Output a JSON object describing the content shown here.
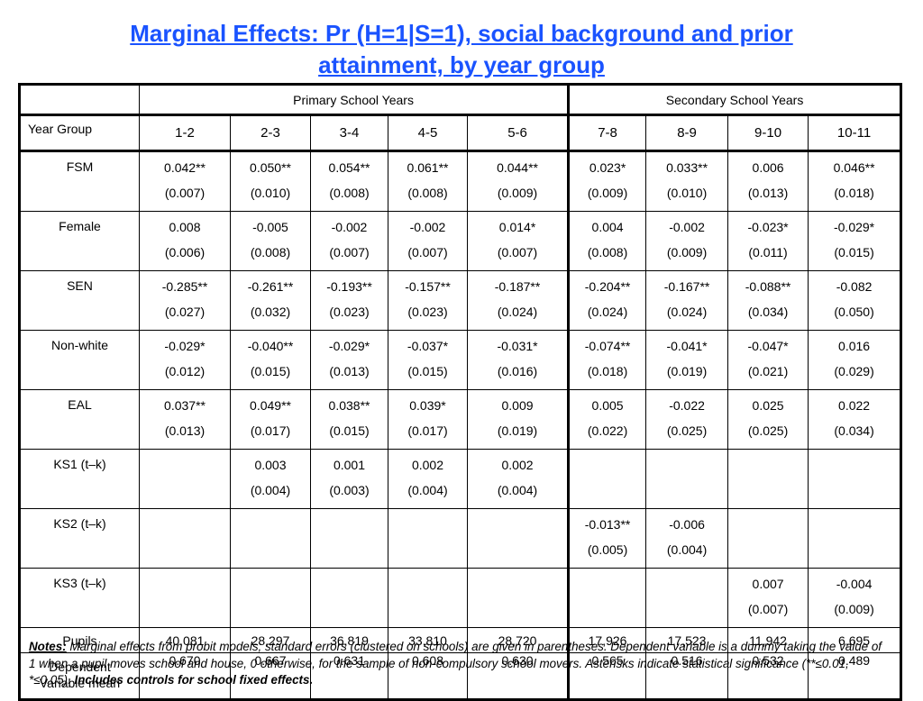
{
  "title": {
    "line1": "Marginal Effects: Pr (H=1|S=1), social background and prior",
    "line2": "attainment, by year group"
  },
  "header": {
    "primary": "Primary School Years",
    "secondary": "Secondary School Years",
    "year_group_label": "Year Group",
    "years": [
      "1-2",
      "2-3",
      "3-4",
      "4-5",
      "5-6",
      "7-8",
      "8-9",
      "9-10",
      "10-11"
    ]
  },
  "rows": [
    {
      "label": "FSM",
      "values": [
        "0.042**",
        "0.050**",
        "0.054**",
        "0.061**",
        "0.044**",
        "0.023*",
        "0.033**",
        "0.006",
        "0.046**"
      ],
      "se": [
        "(0.007)",
        "(0.010)",
        "(0.008)",
        "(0.008)",
        "(0.009)",
        "(0.009)",
        "(0.010)",
        "(0.013)",
        "(0.018)"
      ]
    },
    {
      "label": "Female",
      "values": [
        "0.008",
        "-0.005",
        "-0.002",
        "-0.002",
        "0.014*",
        "0.004",
        "-0.002",
        "-0.023*",
        "-0.029*"
      ],
      "se": [
        "(0.006)",
        "(0.008)",
        "(0.007)",
        "(0.007)",
        "(0.007)",
        "(0.008)",
        "(0.009)",
        "(0.011)",
        "(0.015)"
      ]
    },
    {
      "label": "SEN",
      "values": [
        "-0.285**",
        "-0.261**",
        "-0.193**",
        "-0.157**",
        "-0.187**",
        "-0.204**",
        "-0.167**",
        "-0.088**",
        "-0.082"
      ],
      "se": [
        "(0.027)",
        "(0.032)",
        "(0.023)",
        "(0.023)",
        "(0.024)",
        "(0.024)",
        "(0.024)",
        "(0.034)",
        "(0.050)"
      ]
    },
    {
      "label": "Non-white",
      "values": [
        "-0.029*",
        "-0.040**",
        "-0.029*",
        "-0.037*",
        "-0.031*",
        "-0.074**",
        "-0.041*",
        "-0.047*",
        "0.016"
      ],
      "se": [
        "(0.012)",
        "(0.015)",
        "(0.013)",
        "(0.015)",
        "(0.016)",
        "(0.018)",
        "(0.019)",
        "(0.021)",
        "(0.029)"
      ]
    },
    {
      "label": "EAL",
      "values": [
        "0.037**",
        "0.049**",
        "0.038**",
        "0.039*",
        "0.009",
        "0.005",
        "-0.022",
        "0.025",
        "0.022"
      ],
      "se": [
        "(0.013)",
        "(0.017)",
        "(0.015)",
        "(0.017)",
        "(0.019)",
        "(0.022)",
        "(0.025)",
        "(0.025)",
        "(0.034)"
      ]
    },
    {
      "label": "KS1 (t–k)",
      "values": [
        "",
        "0.003",
        "0.001",
        "0.002",
        "0.002",
        "",
        "",
        "",
        ""
      ],
      "se": [
        "",
        "(0.004)",
        "(0.003)",
        "(0.004)",
        "(0.004)",
        "",
        "",
        "",
        ""
      ]
    },
    {
      "label": "KS2 (t–k)",
      "values": [
        "",
        "",
        "",
        "",
        "",
        "-0.013**",
        "-0.006",
        "",
        ""
      ],
      "se": [
        "",
        "",
        "",
        "",
        "",
        "(0.005)",
        "(0.004)",
        "",
        ""
      ]
    },
    {
      "label": "KS3 (t–k)",
      "values": [
        "",
        "",
        "",
        "",
        "",
        "",
        "",
        "0.007",
        "-0.004"
      ],
      "se": [
        "",
        "",
        "",
        "",
        "",
        "",
        "",
        "(0.007)",
        "(0.009)"
      ]
    }
  ],
  "pupils": {
    "label": "Pupils",
    "values": [
      "40,081",
      "28,297",
      "36,819",
      "33,810",
      "28,720",
      "17,926",
      "17,523",
      "11,942",
      "6,695"
    ]
  },
  "dependent": {
    "label_line1": "Dependent",
    "label_line2": "Variable mean",
    "values": [
      "0.670",
      "0.667",
      "0.631",
      "0.608",
      "0.630",
      "0.565",
      "0.516",
      "0.532",
      "0.489"
    ]
  },
  "notes": {
    "label": "Notes:",
    "body": " Marginal effects from probit models; standard errors (clustered on schools) are given in parentheses. Dependent variable is a dummy taking the value of 1 when a pupil moves school and house, 0 otherwise, for the sample of non-compulsory school movers. Asterisks indicate statistical significance (**≤0.01, *≤0.05). ",
    "bold_tail": "Includes controls for school fixed effects."
  }
}
